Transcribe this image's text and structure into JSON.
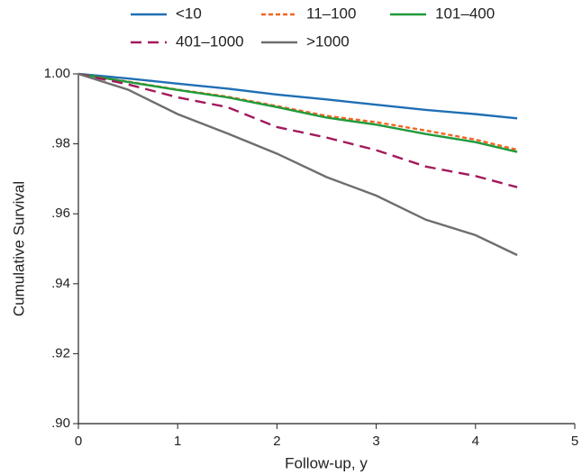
{
  "chart_data": {
    "type": "line",
    "x_label": "Follow-up, y",
    "y_label": "Cumulative Survival",
    "x": [
      0,
      0.5,
      1,
      1.5,
      2,
      2.5,
      3,
      3.5,
      4,
      4.42
    ],
    "series": [
      {
        "name": "<10",
        "color": "#1f6fb5",
        "dash": false,
        "values": [
          1.0,
          0.9987,
          0.9972,
          0.9958,
          0.9941,
          0.9927,
          0.9912,
          0.9897,
          0.9885,
          0.9873
        ]
      },
      {
        "name": "11–100",
        "color": "#f26522",
        "dash": true,
        "values": [
          1.0,
          0.9978,
          0.9955,
          0.9935,
          0.9908,
          0.988,
          0.9862,
          0.9838,
          0.9812,
          0.9783
        ]
      },
      {
        "name": "101–400",
        "color": "#1f9a3a",
        "dash": false,
        "values": [
          1.0,
          0.9977,
          0.9954,
          0.9933,
          0.9905,
          0.9875,
          0.9855,
          0.9828,
          0.9805,
          0.9777
        ]
      },
      {
        "name": "401–1000",
        "color": "#a3195b",
        "dash": true,
        "values": [
          1.0,
          0.997,
          0.9933,
          0.9905,
          0.9848,
          0.9818,
          0.9782,
          0.9735,
          0.9708,
          0.9676
        ]
      },
      {
        "name": ">1000",
        "color": "#6d6e71",
        "dash": false,
        "values": [
          1.0,
          0.9955,
          0.9885,
          0.983,
          0.9772,
          0.9705,
          0.9652,
          0.9583,
          0.9539,
          0.9482
        ]
      }
    ],
    "xlim": [
      0,
      5
    ],
    "xticks": [
      0,
      1,
      2,
      3,
      4,
      5
    ],
    "ylim": [
      0.9,
      1.0
    ],
    "yticks": [
      {
        "value": 0.9,
        "label": ".90"
      },
      {
        "value": 0.92,
        "label": ".92"
      },
      {
        "value": 0.94,
        "label": ".94"
      },
      {
        "value": 0.96,
        "label": ".96"
      },
      {
        "value": 0.98,
        "label": ".98"
      },
      {
        "value": 1.0,
        "label": "1.00"
      }
    ],
    "grid": false
  }
}
